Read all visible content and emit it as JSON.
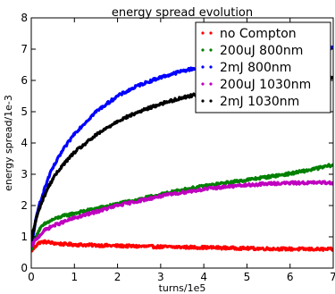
{
  "chart_data": {
    "type": "scatter",
    "title": "energy spread evolution",
    "xlabel": "turns/1e5",
    "ylabel": "energy spread/1e-3",
    "xlim": [
      0,
      7
    ],
    "ylim": [
      0,
      8
    ],
    "xticks": [
      "0",
      "1",
      "2",
      "3",
      "4",
      "5",
      "6",
      "7"
    ],
    "yticks": [
      "0",
      "1",
      "2",
      "3",
      "4",
      "5",
      "6",
      "7",
      "8"
    ],
    "grid": false,
    "legend_position": "top-right",
    "series": [
      {
        "name": "no Compton",
        "color": "#ff0000",
        "x": [
          0.0,
          0.05,
          0.1,
          0.15,
          0.2,
          0.3,
          0.4,
          0.5,
          0.7,
          1.0,
          1.5,
          2.0,
          3.0,
          4.0,
          5.0,
          6.0,
          7.0
        ],
        "y": [
          0.55,
          0.62,
          0.7,
          0.78,
          0.82,
          0.84,
          0.83,
          0.8,
          0.77,
          0.75,
          0.73,
          0.71,
          0.68,
          0.66,
          0.63,
          0.61,
          0.6
        ]
      },
      {
        "name": "200uJ 800nm",
        "color": "#008000",
        "x": [
          0.0,
          0.05,
          0.1,
          0.2,
          0.3,
          0.5,
          0.7,
          1.0,
          1.5,
          2.0,
          2.5,
          3.0,
          3.5,
          4.0,
          4.5,
          5.0,
          5.5,
          6.0,
          6.5,
          7.0
        ],
        "y": [
          0.6,
          0.8,
          1.0,
          1.25,
          1.4,
          1.55,
          1.65,
          1.75,
          1.9,
          2.05,
          2.2,
          2.35,
          2.5,
          2.62,
          2.72,
          2.82,
          2.92,
          3.02,
          3.15,
          3.3
        ]
      },
      {
        "name": "2mJ 800nm",
        "color": "#0000ff",
        "x": [
          0.0,
          0.05,
          0.1,
          0.2,
          0.3,
          0.4,
          0.5,
          0.7,
          1.0,
          1.5,
          2.0,
          2.5,
          3.0,
          3.5,
          4.0,
          4.5,
          4.8,
          5.5,
          6.0,
          6.5,
          7.0
        ],
        "y": [
          0.7,
          1.1,
          1.5,
          2.1,
          2.5,
          2.9,
          3.2,
          3.7,
          4.3,
          5.0,
          5.5,
          5.85,
          6.1,
          6.3,
          6.45,
          6.55,
          6.6,
          6.8,
          6.95,
          7.0,
          7.05
        ]
      },
      {
        "name": "200uJ 1030nm",
        "color": "#bf00bf",
        "x": [
          0.0,
          0.05,
          0.1,
          0.2,
          0.3,
          0.5,
          0.7,
          1.0,
          1.5,
          2.0,
          2.5,
          3.0,
          3.5,
          4.0,
          4.5,
          5.0,
          5.5,
          6.0,
          6.5,
          7.0
        ],
        "y": [
          0.7,
          0.8,
          0.9,
          1.05,
          1.2,
          1.35,
          1.45,
          1.6,
          1.8,
          2.0,
          2.15,
          2.3,
          2.42,
          2.52,
          2.6,
          2.65,
          2.7,
          2.72,
          2.73,
          2.73
        ]
      },
      {
        "name": "2mJ 1030nm",
        "color": "#000000",
        "x": [
          0.0,
          0.05,
          0.1,
          0.2,
          0.3,
          0.4,
          0.5,
          0.7,
          1.0,
          1.5,
          2.0,
          2.5,
          3.0,
          3.5,
          4.0,
          4.5,
          5.0,
          5.5,
          6.0,
          6.5,
          7.0
        ],
        "y": [
          0.9,
          1.2,
          1.5,
          1.95,
          2.3,
          2.6,
          2.85,
          3.25,
          3.7,
          4.25,
          4.7,
          5.0,
          5.25,
          5.45,
          5.6,
          5.7,
          5.82,
          5.9,
          5.98,
          6.05,
          6.1
        ]
      }
    ]
  }
}
